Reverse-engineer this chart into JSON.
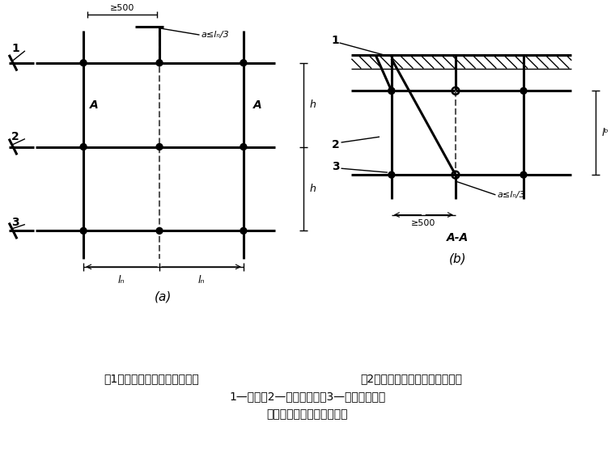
{
  "fig_width": 7.6,
  "fig_height": 5.7,
  "bg_color": "#ffffff",
  "line_color": "#000000",
  "caption_a": "(a)",
  "caption_b": "(b)",
  "label_1_a": "1",
  "label_2_a": "2",
  "label_3_a": "3",
  "label_A1": "A",
  "label_A2": "A",
  "label_1_b": "1",
  "label_2_b": "2",
  "label_3_b": "3",
  "label_AA": "A-A",
  "dim_500a": "≥500",
  "dim_la3a": "a≤lₙ/3",
  "dim_500b": "≥500",
  "dim_la3b": "a≤lₙ/3",
  "dim_h1": "h",
  "dim_h2": "h",
  "dim_la": "lₙ",
  "dim_ln": "lₙ",
  "dim_lb": "lᵇ",
  "text_caption1": "（1）接头不在同步内（立面）",
  "text_caption2": "（2）接头不在同跨内（平面）。",
  "text_caption3": "1—立杆；2—纵向水平杆；3—横向水平杆。",
  "text_caption4": "纵向水平杆对接接头布置。"
}
